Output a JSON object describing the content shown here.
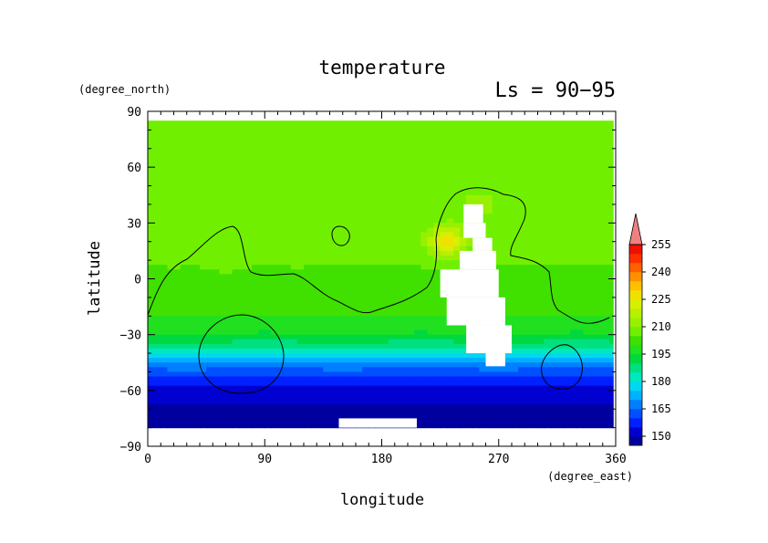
{
  "chart_data": {
    "type": "heatmap",
    "title": "temperature",
    "subtitle": "Ls = 90−95",
    "xlabel": "longitude",
    "ylabel": "latitude",
    "x_units": "(degree_east)",
    "y_units": "(degree_north)",
    "xlim": [
      0,
      360
    ],
    "ylim": [
      -90,
      90
    ],
    "x_ticks": [
      "0",
      "90",
      "180",
      "270",
      "360"
    ],
    "x_tick_values": [
      0,
      90,
      180,
      270,
      360
    ],
    "y_ticks": [
      "90",
      "60",
      "30",
      "0",
      "−30",
      "−60",
      "−90"
    ],
    "y_tick_values": [
      90,
      60,
      30,
      0,
      -30,
      -60,
      -90
    ],
    "colorbar": {
      "levels": [
        145,
        150,
        155,
        160,
        165,
        170,
        175,
        180,
        185,
        190,
        195,
        200,
        205,
        210,
        215,
        220,
        225,
        230,
        235,
        240,
        245,
        250,
        255,
        260
      ],
      "colors": [
        "#0000a0",
        "#0000d0",
        "#0020ff",
        "#0050ff",
        "#0080ff",
        "#00b0ff",
        "#00d8f0",
        "#00e8c0",
        "#00e080",
        "#00d840",
        "#20e020",
        "#40e000",
        "#70f000",
        "#98f000",
        "#b8f000",
        "#d8f000",
        "#f0e000",
        "#ffc000",
        "#ff9000",
        "#ff6000",
        "#ff3000",
        "#f01000",
        "#e00000",
        "#f08080"
      ],
      "tick_labels": [
        "150",
        "165",
        "180",
        "195",
        "210",
        "225",
        "240",
        "255"
      ],
      "tick_values": [
        150,
        165,
        180,
        195,
        210,
        225,
        240,
        255
      ]
    },
    "zonal_profile": [
      {
        "lat": 85,
        "value": 208
      },
      {
        "lat": 60,
        "value": 208
      },
      {
        "lat": 45,
        "value": 207
      },
      {
        "lat": 30,
        "value": 207
      },
      {
        "lat": 15,
        "value": 206
      },
      {
        "lat": 0,
        "value": 204
      },
      {
        "lat": -10,
        "value": 202
      },
      {
        "lat": -20,
        "value": 200
      },
      {
        "lat": -28,
        "value": 196
      },
      {
        "lat": -34,
        "value": 190
      },
      {
        "lat": -40,
        "value": 180
      },
      {
        "lat": -46,
        "value": 168
      },
      {
        "lat": -52,
        "value": 160
      },
      {
        "lat": -58,
        "value": 155
      },
      {
        "lat": -64,
        "value": 151
      },
      {
        "lat": -72,
        "value": 148
      },
      {
        "lat": -80,
        "value": 147
      }
    ],
    "warm_patches": [
      {
        "lon": 60,
        "lat": 15,
        "value": 210
      },
      {
        "lon": 20,
        "lat": 20,
        "value": 210
      },
      {
        "lon": 115,
        "lat": 20,
        "value": 210
      },
      {
        "lon": 255,
        "lat": 40,
        "value": 212
      },
      {
        "lon": 325,
        "lat": 40,
        "value": 210
      },
      {
        "lon": 230,
        "lat": 20,
        "value": 228
      }
    ],
    "contour_level": 210,
    "missing_regions": [
      {
        "lon": [
          243,
          258
        ],
        "lat": [
          40,
          30
        ]
      },
      {
        "lon": [
          243,
          260
        ],
        "lat": [
          30,
          22
        ]
      },
      {
        "lon": [
          250,
          265
        ],
        "lat": [
          22,
          15
        ]
      },
      {
        "lon": [
          240,
          268
        ],
        "lat": [
          15,
          5
        ]
      },
      {
        "lon": [
          225,
          270
        ],
        "lat": [
          5,
          -10
        ]
      },
      {
        "lon": [
          230,
          275
        ],
        "lat": [
          -10,
          -25
        ]
      },
      {
        "lon": [
          245,
          280
        ],
        "lat": [
          -25,
          -40
        ]
      },
      {
        "lon": [
          260,
          275
        ],
        "lat": [
          -40,
          -47
        ]
      },
      {
        "lon": [
          147,
          207
        ],
        "lat": [
          -75,
          -80
        ]
      }
    ]
  }
}
